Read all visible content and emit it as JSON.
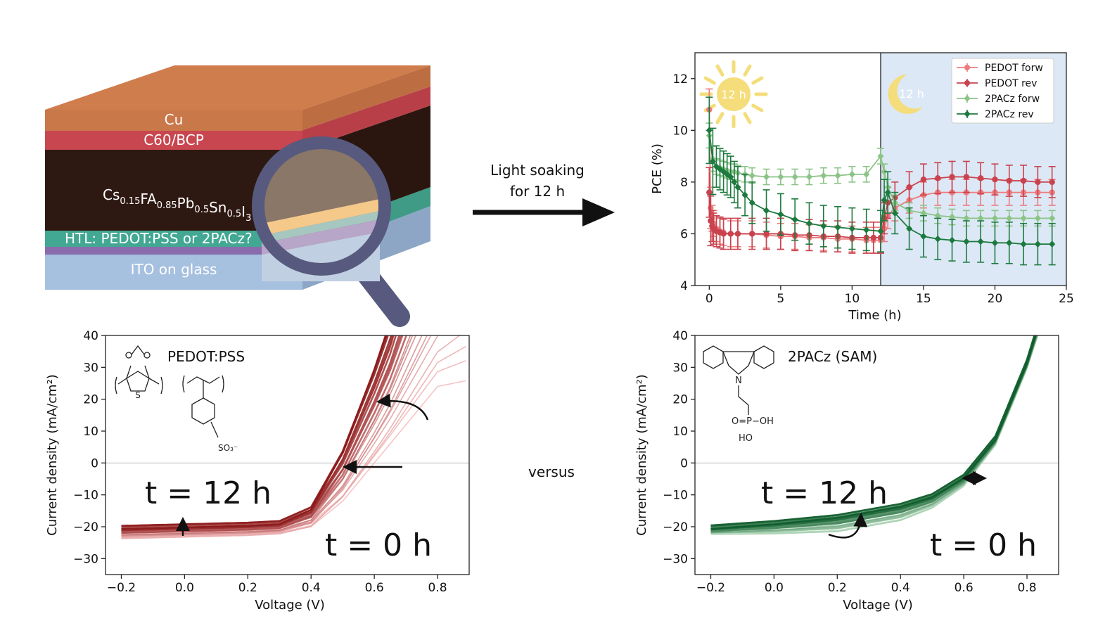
{
  "stack": {
    "layers": [
      "Cu",
      "C60/BCP",
      "Cs0.15FA0.85Pb0.5Sn0.5I3",
      "HTL: PEDOT:PSS or 2PACz?",
      "ITO on glass"
    ],
    "perovskite_parts": [
      {
        "t": "Cs",
        "s": "0.15"
      },
      {
        "t": "FA",
        "s": "0.85"
      },
      {
        "t": "Pb",
        "s": "0.5"
      },
      {
        "t": "Sn",
        "s": "0.5"
      },
      {
        "t": "I",
        "s": "3"
      }
    ],
    "colors": {
      "cu": "#c9784a",
      "c60": "#c8464f",
      "perovskite": "#2e1912",
      "htl": "#43a893",
      "ito": "#a6c0df",
      "lens_ring": "#575a7e"
    }
  },
  "arrow": {
    "line1": "Light soaking",
    "line2": "for 12 h"
  },
  "versus_label": "versus",
  "pce": {
    "ylabel": "PCE (%)",
    "xlabel": "Time (h)",
    "light_label": "12 h",
    "dark_label": "12 h",
    "dark_bg": "#dce8f5"
  },
  "jv_left": {
    "title": "PEDOT:PSS",
    "t12": "t = 12 h",
    "t0": "t = 0 h",
    "xlabel": "Voltage (V)",
    "ylabel": "Current density (mA/cm²)",
    "mol_s": "S",
    "mol_so3": "SO₃⁻"
  },
  "jv_right": {
    "title": "2PACz (SAM)",
    "t12": "t = 12 h",
    "t0": "t = 0 h",
    "xlabel": "Voltage (V)",
    "ylabel": "Current density (mA/cm²)",
    "mol_n": "N",
    "mol_p": "O=P−OH",
    "mol_ho": "HO"
  },
  "chart_data": [
    {
      "type": "line",
      "xlabel": "Time (h)",
      "ylabel": "PCE (%)",
      "xlim": [
        -1,
        25
      ],
      "ylim": [
        4,
        13
      ],
      "xticks": [
        0,
        5,
        10,
        15,
        20,
        25
      ],
      "yticks": [
        4,
        6,
        8,
        10,
        12
      ],
      "legend": "top-right",
      "grid": false,
      "series": [
        {
          "name": "PEDOT forw",
          "color": "#ec7b7e",
          "marker": "circle",
          "x": [
            0,
            0.1,
            0.2,
            0.3,
            0.5,
            0.75,
            1,
            1.5,
            2,
            3,
            4,
            5,
            6,
            7,
            8,
            9,
            10,
            11,
            11.5,
            12,
            12.25,
            12.5,
            13,
            14,
            15,
            16,
            17,
            18,
            19,
            20,
            21,
            22,
            23,
            24
          ],
          "y": [
            10.8,
            7.0,
            6.6,
            6.4,
            6.2,
            6.1,
            6.05,
            6.0,
            6.0,
            6.0,
            5.95,
            5.9,
            5.9,
            5.85,
            5.85,
            5.8,
            5.8,
            5.75,
            5.75,
            5.75,
            6.2,
            6.7,
            7.0,
            7.3,
            7.5,
            7.6,
            7.6,
            7.6,
            7.6,
            7.6,
            7.6,
            7.6,
            7.6,
            7.6
          ],
          "err": 0.5
        },
        {
          "name": "PEDOT rev",
          "color": "#c9424e",
          "marker": "circle",
          "x": [
            0,
            0.1,
            0.2,
            0.3,
            0.5,
            0.75,
            1,
            1.5,
            2,
            3,
            4,
            5,
            6,
            7,
            8,
            9,
            10,
            11,
            11.5,
            12,
            12.25,
            12.5,
            13,
            14,
            15,
            16,
            17,
            18,
            19,
            20,
            21,
            22,
            23,
            24
          ],
          "y": [
            7.6,
            6.5,
            6.3,
            6.2,
            6.1,
            6.05,
            6.0,
            6.0,
            6.0,
            6.0,
            6.0,
            6.0,
            5.95,
            5.95,
            5.9,
            5.9,
            5.85,
            5.85,
            5.85,
            5.85,
            6.6,
            7.2,
            7.4,
            7.8,
            8.1,
            8.15,
            8.2,
            8.2,
            8.15,
            8.1,
            8.05,
            8.05,
            8.0,
            8.0
          ],
          "err": 0.6
        },
        {
          "name": "2PACz forw",
          "color": "#8cc488",
          "marker": "diamond",
          "x": [
            0,
            0.25,
            0.5,
            0.75,
            1,
            1.25,
            1.5,
            1.75,
            2,
            2.5,
            3,
            4,
            5,
            6,
            7,
            8,
            9,
            10,
            11,
            12,
            12.25,
            12.5,
            13,
            14,
            15,
            16,
            17,
            18,
            19,
            20,
            21,
            22,
            23,
            24
          ],
          "y": [
            9.8,
            8.9,
            8.6,
            8.55,
            8.5,
            8.45,
            8.4,
            8.4,
            8.35,
            8.3,
            8.25,
            8.2,
            8.2,
            8.2,
            8.2,
            8.25,
            8.25,
            8.3,
            8.3,
            9.0,
            8.4,
            7.8,
            7.2,
            6.9,
            6.8,
            6.7,
            6.65,
            6.6,
            6.6,
            6.6,
            6.6,
            6.6,
            6.6,
            6.6
          ],
          "err": 0.3
        },
        {
          "name": "2PACz rev",
          "color": "#1d7a3f",
          "marker": "diamond",
          "x": [
            0,
            0.25,
            0.5,
            0.75,
            1,
            1.25,
            1.5,
            1.75,
            2,
            2.5,
            3,
            4,
            5,
            6,
            7,
            8,
            9,
            10,
            11,
            12,
            12.25,
            12.5,
            13,
            14,
            15,
            16,
            17,
            18,
            19,
            20,
            21,
            22,
            23,
            24
          ],
          "y": [
            10.0,
            8.8,
            8.6,
            8.5,
            8.4,
            8.3,
            8.2,
            8.0,
            7.8,
            7.5,
            7.2,
            6.9,
            6.75,
            6.55,
            6.4,
            6.3,
            6.25,
            6.2,
            6.15,
            6.1,
            7.3,
            7.6,
            6.8,
            6.2,
            5.9,
            5.8,
            5.75,
            5.7,
            5.7,
            5.65,
            5.65,
            5.6,
            5.6,
            5.6
          ],
          "err": 0.8
        }
      ]
    },
    {
      "type": "line",
      "xlabel": "Voltage (V)",
      "ylabel": "Current density (mA/cm²)",
      "xlim": [
        -0.25,
        0.9
      ],
      "ylim": [
        -35,
        40
      ],
      "xticks": [
        -0.2,
        0.0,
        0.2,
        0.4,
        0.6,
        0.8
      ],
      "yticks": [
        -30,
        -20,
        -10,
        0,
        10,
        20,
        30,
        40
      ],
      "series": [
        {
          "name": "",
          "color": "#f4b6b8",
          "x": [
            -0.2,
            0.0,
            0.2,
            0.3,
            0.4,
            0.5,
            0.6,
            0.7,
            0.8,
            0.9
          ],
          "y": [
            -23.5,
            -23.0,
            -22.5,
            -22.0,
            -20.0,
            -12.0,
            0.0,
            12.0,
            24.0,
            26.0
          ]
        },
        {
          "name": "",
          "color": "#8b1a1a",
          "x": [
            -0.2,
            0.0,
            0.2,
            0.3,
            0.4,
            0.5,
            0.6,
            0.65
          ],
          "y": [
            -20.0,
            -19.5,
            -19.0,
            -18.5,
            -14.0,
            4.0,
            30.0,
            45.0
          ]
        }
      ]
    },
    {
      "type": "line",
      "xlabel": "Voltage (V)",
      "ylabel": "Current density (mA/cm²)",
      "xlim": [
        -0.25,
        0.9
      ],
      "ylim": [
        -35,
        40
      ],
      "xticks": [
        -0.2,
        0.0,
        0.2,
        0.4,
        0.6,
        0.8
      ],
      "yticks": [
        -30,
        -20,
        -10,
        0,
        10,
        20,
        30,
        40
      ],
      "series": [
        {
          "name": "",
          "color": "#b9dfc0",
          "x": [
            -0.2,
            0.0,
            0.2,
            0.4,
            0.5,
            0.6,
            0.7,
            0.8,
            0.85
          ],
          "y": [
            -22.0,
            -22.0,
            -21.5,
            -18.0,
            -14.0,
            -7.0,
            6.0,
            30.0,
            45.0
          ]
        },
        {
          "name": "",
          "color": "#0f5c2c",
          "x": [
            -0.2,
            0.0,
            0.2,
            0.4,
            0.5,
            0.6,
            0.7,
            0.8,
            0.84
          ],
          "y": [
            -20.0,
            -18.5,
            -16.5,
            -13.0,
            -10.0,
            -4.0,
            8.0,
            32.0,
            45.0
          ]
        }
      ]
    }
  ]
}
